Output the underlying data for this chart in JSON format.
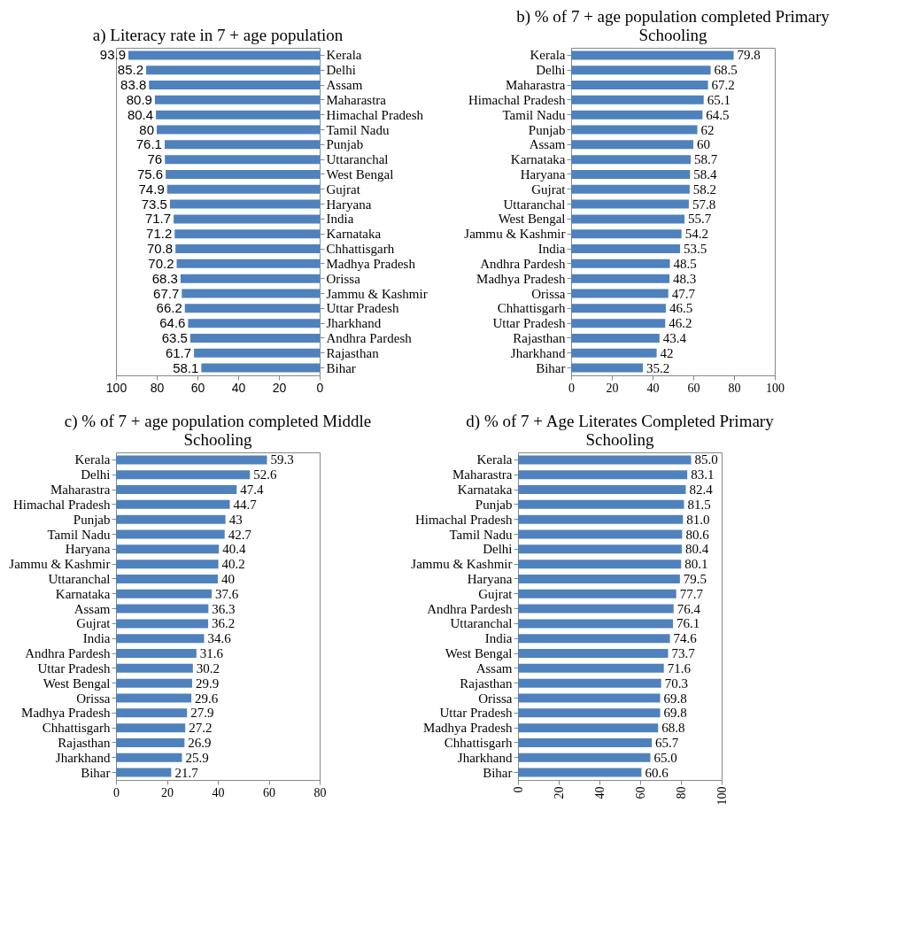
{
  "chart_data": [
    {
      "type": "bar",
      "orientation": "horizontal",
      "title": "a)  Literacy rate in 7 + age population",
      "categories": [
        "Kerala",
        "Delhi",
        "Assam",
        "Maharastra",
        "Himachal Pradesh",
        "Tamil Nadu",
        "Punjab",
        "Uttaranchal",
        "West Bengal",
        "Gujrat",
        "Haryana",
        "India",
        "Karnataka",
        "Chhattisgarh",
        "Madhya Pradesh",
        "Orissa",
        "Jammu & Kashmir",
        "Uttar Pradesh",
        "Jharkhand",
        "Andhra Pardesh",
        "Rajasthan",
        "Bihar"
      ],
      "values": [
        93.9,
        85.2,
        83.8,
        80.9,
        80.4,
        80,
        76.1,
        76,
        75.6,
        74.9,
        73.5,
        71.7,
        71.2,
        70.8,
        70.2,
        68.3,
        67.7,
        66.2,
        64.6,
        63.5,
        61.7,
        58.1
      ],
      "color": "#4f81bd",
      "xlim": [
        100,
        0
      ],
      "xticks": [
        100,
        80,
        60,
        40,
        20,
        0
      ],
      "data_labels": true
    },
    {
      "type": "bar",
      "orientation": "horizontal",
      "title": "b)  % of 7 + age population completed Primary Schooling",
      "categories": [
        "Kerala",
        "Delhi",
        "Maharastra",
        "Himachal Pradesh",
        "Tamil Nadu",
        "Punjab",
        "Assam",
        "Karnataka",
        "Haryana",
        "Gujrat",
        "Uttaranchal",
        "West Bengal",
        "Jammu & Kashmir",
        "India",
        "Andhra Pardesh",
        "Madhya Pradesh",
        "Orissa",
        "Chhattisgarh",
        "Uttar Pradesh",
        "Rajasthan",
        "Jharkhand",
        "Bihar"
      ],
      "values": [
        79.8,
        68.5,
        67.2,
        65.1,
        64.5,
        62,
        60,
        58.7,
        58.4,
        58.2,
        57.8,
        55.7,
        54.2,
        53.5,
        48.5,
        48.3,
        47.7,
        46.5,
        46.2,
        43.4,
        42,
        35.2
      ],
      "color": "#4f81bd",
      "xlim": [
        0,
        100
      ],
      "xticks": [
        0,
        20,
        40,
        60,
        80,
        100
      ],
      "data_labels": true
    },
    {
      "type": "bar",
      "orientation": "horizontal",
      "title": "c)  % of 7 + age population completed Middle Schooling",
      "categories": [
        "Kerala",
        "Delhi",
        "Maharastra",
        "Himachal Pradesh",
        "Punjab",
        "Tamil Nadu",
        "Haryana",
        "Jammu & Kashmir",
        "Uttaranchal",
        "Karnataka",
        "Assam",
        "Gujrat",
        "India",
        "Andhra Pardesh",
        "Uttar Pradesh",
        "West Bengal",
        "Orissa",
        "Madhya Pradesh",
        "Chhattisgarh",
        "Rajasthan",
        "Jharkhand",
        "Bihar"
      ],
      "values": [
        59.3,
        52.6,
        47.4,
        44.7,
        43,
        42.7,
        40.4,
        40.2,
        40,
        37.6,
        36.3,
        36.2,
        34.6,
        31.6,
        30.2,
        29.9,
        29.6,
        27.9,
        27.2,
        26.9,
        25.9,
        21.7
      ],
      "color": "#4f81bd",
      "xlim": [
        0,
        80
      ],
      "xticks": [
        0,
        20,
        40,
        60,
        80
      ],
      "data_labels": true
    },
    {
      "type": "bar",
      "orientation": "horizontal",
      "title": "d)  % of 7 + Age Literates Completed Primary Schooling",
      "categories": [
        "Kerala",
        "Maharastra",
        "Karnataka",
        "Punjab",
        "Himachal Pradesh",
        "Tamil Nadu",
        "Delhi",
        "Jammu & Kashmir",
        "Haryana",
        "Gujrat",
        "Andhra Pardesh",
        "Uttaranchal",
        "India",
        "West Bengal",
        "Assam",
        "Rajasthan",
        "Orissa",
        "Uttar Pradesh",
        "Madhya Pradesh",
        "Chhattisgarh",
        "Jharkhand",
        "Bihar"
      ],
      "values": [
        85.0,
        83.1,
        82.4,
        81.5,
        81.0,
        80.6,
        80.4,
        80.1,
        79.5,
        77.7,
        76.4,
        76.1,
        74.6,
        73.7,
        71.6,
        70.3,
        69.8,
        69.8,
        68.8,
        65.7,
        65.0,
        60.6
      ],
      "value_labels": [
        "85.0",
        "83.1",
        "82.4",
        "81.5",
        "81.0",
        "80.6",
        "80.4",
        "80.1",
        "79.5",
        "77.7",
        "76.4",
        "76.1",
        "74.6",
        "73.7",
        "71.6",
        "70.3",
        "69.8",
        "69.8",
        "68.8",
        "65.7",
        "65.0",
        "60.6"
      ],
      "color": "#4f81bd",
      "xlim": [
        0,
        100
      ],
      "xticks": [
        0,
        20,
        40,
        60,
        80,
        100
      ]
    }
  ]
}
